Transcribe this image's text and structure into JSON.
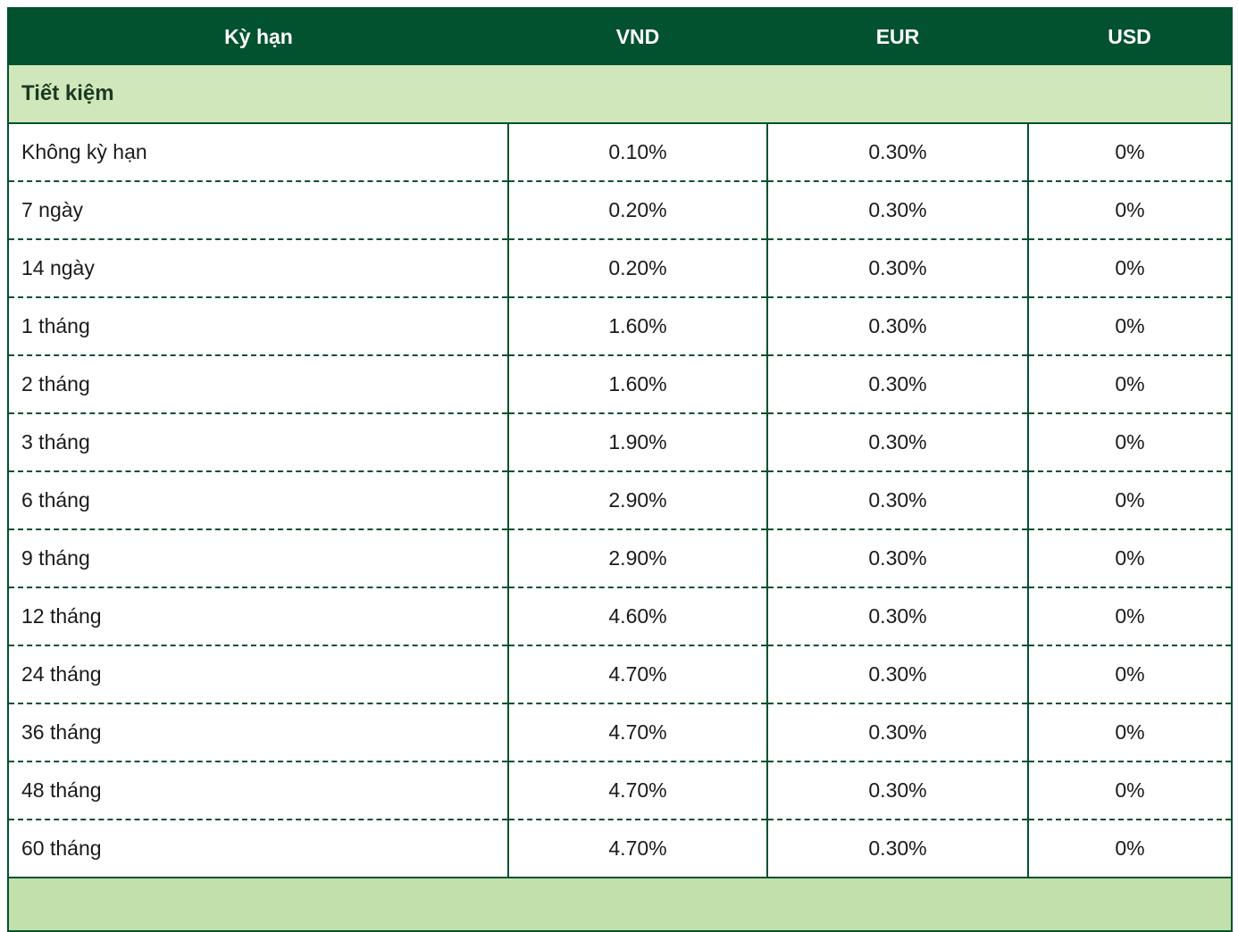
{
  "table": {
    "headers": {
      "term": "Kỳ hạn",
      "vnd": "VND",
      "eur": "EUR",
      "usd": "USD"
    },
    "section_label": "Tiết kiệm",
    "rows": [
      {
        "term": "Không kỳ hạn",
        "vnd": "0.10%",
        "eur": "0.30%",
        "usd": "0%"
      },
      {
        "term": "7 ngày",
        "vnd": "0.20%",
        "eur": "0.30%",
        "usd": "0%"
      },
      {
        "term": "14 ngày",
        "vnd": "0.20%",
        "eur": "0.30%",
        "usd": "0%"
      },
      {
        "term": "1 tháng",
        "vnd": "1.60%",
        "eur": "0.30%",
        "usd": "0%"
      },
      {
        "term": "2 tháng",
        "vnd": "1.60%",
        "eur": "0.30%",
        "usd": "0%"
      },
      {
        "term": "3 tháng",
        "vnd": "1.90%",
        "eur": "0.30%",
        "usd": "0%"
      },
      {
        "term": "6 tháng",
        "vnd": "2.90%",
        "eur": "0.30%",
        "usd": "0%"
      },
      {
        "term": "9 tháng",
        "vnd": "2.90%",
        "eur": "0.30%",
        "usd": "0%"
      },
      {
        "term": "12 tháng",
        "vnd": "4.60%",
        "eur": "0.30%",
        "usd": "0%"
      },
      {
        "term": "24 tháng",
        "vnd": "4.70%",
        "eur": "0.30%",
        "usd": "0%"
      },
      {
        "term": "36 tháng",
        "vnd": "4.70%",
        "eur": "0.30%",
        "usd": "0%"
      },
      {
        "term": "48 tháng",
        "vnd": "4.70%",
        "eur": "0.30%",
        "usd": "0%"
      },
      {
        "term": "60 tháng",
        "vnd": "4.70%",
        "eur": "0.30%",
        "usd": "0%"
      }
    ]
  },
  "colors": {
    "header_bg": "#02512f",
    "border": "#02512f",
    "header_text": "#ffffff",
    "section_bg": "#cfe7ba",
    "next_section_bg": "#c2e0ac",
    "section_text": "#1c3a22",
    "body_text": "#1a1a1a",
    "page_bg": "#ffffff"
  }
}
